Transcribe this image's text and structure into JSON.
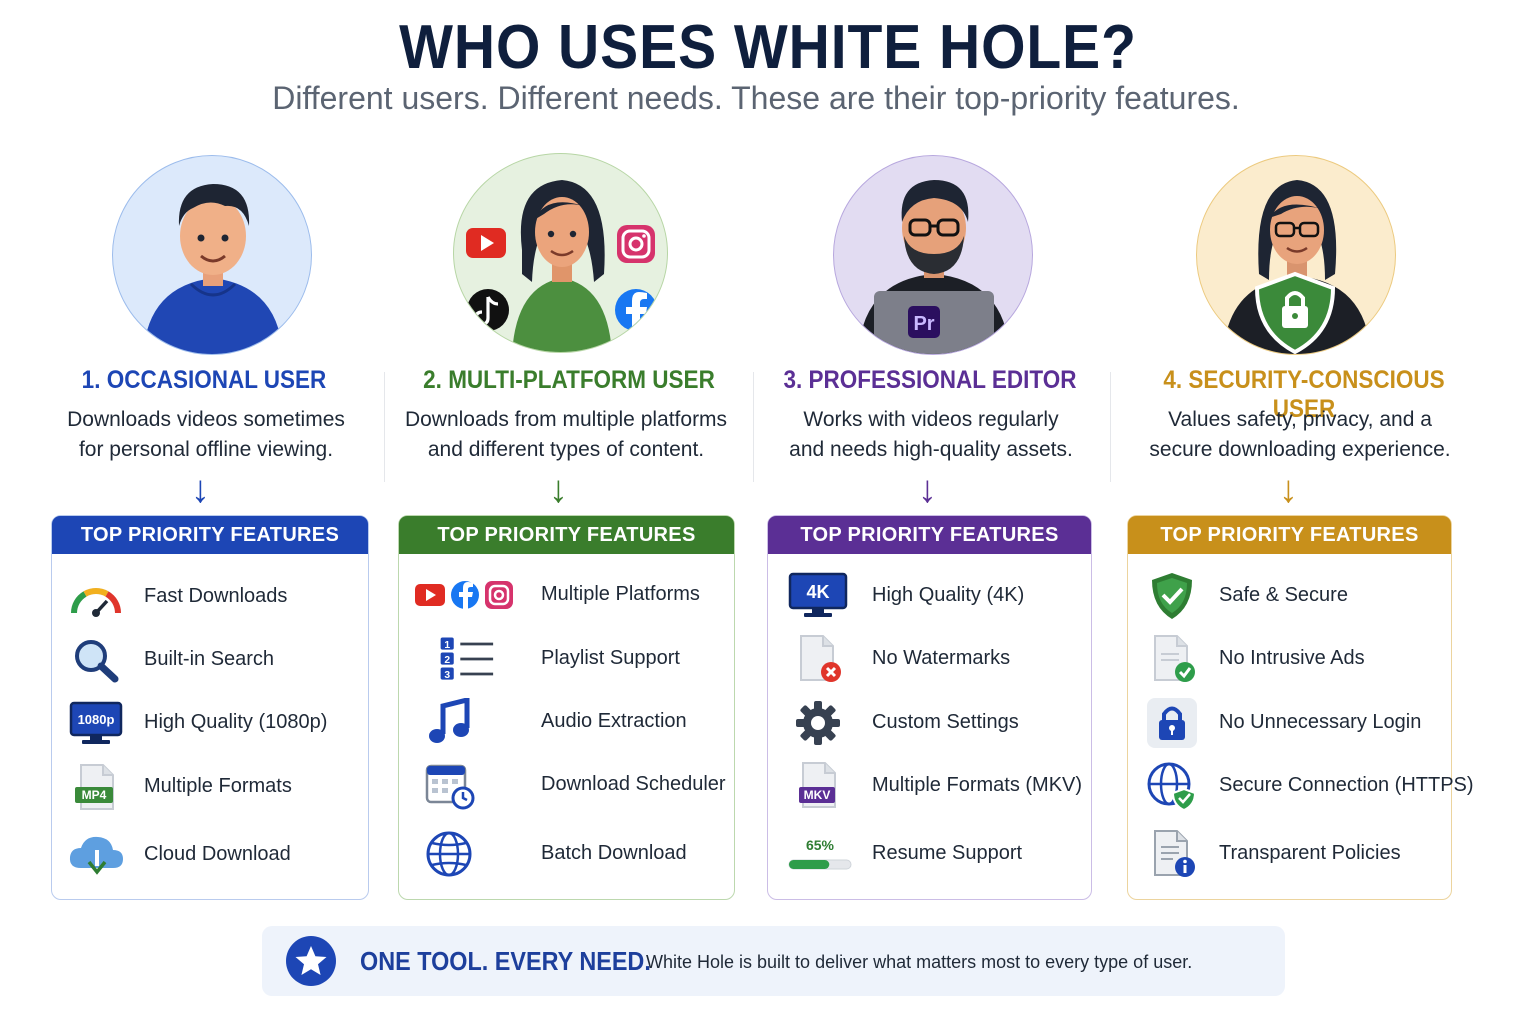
{
  "header": {
    "title": "WHO USES WHITE HOLE?",
    "subtitle": "Different users. Different needs. These are their top-priority features."
  },
  "colors": {
    "blue": "#1d46b5",
    "green": "#3a7d2c",
    "purple": "#5b2f95",
    "gold": "#c8901b"
  },
  "personas": [
    {
      "title": "1. OCCASIONAL USER",
      "description_line1": "Downloads videos sometimes",
      "description_line2": "for personal offline viewing.",
      "card_header": "TOP PRIORITY FEATURES",
      "features": [
        {
          "icon": "speedometer-icon",
          "label": "Fast Downloads"
        },
        {
          "icon": "magnifier-icon",
          "label": "Built-in Search"
        },
        {
          "icon": "monitor-1080p-icon",
          "label": "High Quality (1080p)"
        },
        {
          "icon": "mp4-file-icon",
          "label": "Multiple Formats"
        },
        {
          "icon": "cloud-download-icon",
          "label": "Cloud Download"
        }
      ],
      "icon_texts": {
        "resolution": "1080p",
        "format": "MP4"
      }
    },
    {
      "title": "2. MULTI-PLATFORM USER",
      "description_line1": "Downloads from multiple platforms",
      "description_line2": "and different types of content.",
      "card_header": "TOP PRIORITY FEATURES",
      "features": [
        {
          "icon": "social-platforms-icon",
          "label": "Multiple Platforms"
        },
        {
          "icon": "numbered-list-icon",
          "label": "Playlist Support"
        },
        {
          "icon": "music-note-icon",
          "label": "Audio Extraction"
        },
        {
          "icon": "calendar-clock-icon",
          "label": "Download Scheduler"
        },
        {
          "icon": "globe-icon",
          "label": "Batch Download"
        }
      ],
      "icon_texts": {
        "list_1": "1",
        "list_2": "2",
        "list_3": "3"
      }
    },
    {
      "title": "3. PROFESSIONAL EDITOR",
      "description_line1": "Works with videos regularly",
      "description_line2": "and needs high-quality assets.",
      "card_header": "TOP PRIORITY FEATURES",
      "features": [
        {
          "icon": "monitor-4k-icon",
          "label": "High Quality (4K)"
        },
        {
          "icon": "no-watermark-file-icon",
          "label": "No Watermarks"
        },
        {
          "icon": "gear-icon",
          "label": "Custom Settings"
        },
        {
          "icon": "mkv-file-icon",
          "label": "Multiple Formats (MKV)"
        },
        {
          "icon": "progress-bar-icon",
          "label": "Resume Support"
        }
      ],
      "icon_texts": {
        "resolution": "4K",
        "format": "MKV",
        "progress": "65%",
        "app": "Pr"
      }
    },
    {
      "title": "4. SECURITY-CONSCIOUS USER",
      "description_line1": "Values safety, privacy, and a",
      "description_line2": "secure downloading experience.",
      "card_header": "TOP PRIORITY FEATURES",
      "features": [
        {
          "icon": "shield-check-icon",
          "label": "Safe & Secure"
        },
        {
          "icon": "document-check-icon",
          "label": "No Intrusive Ads"
        },
        {
          "icon": "padlock-icon",
          "label": "No Unnecessary Login"
        },
        {
          "icon": "globe-shield-icon",
          "label": "Secure Connection (HTTPS)"
        },
        {
          "icon": "document-info-icon",
          "label": "Transparent Policies"
        }
      ]
    }
  ],
  "banner": {
    "headline": "ONE TOOL. EVERY NEED.",
    "text": "White Hole is built to deliver what matters most to every type of user."
  }
}
